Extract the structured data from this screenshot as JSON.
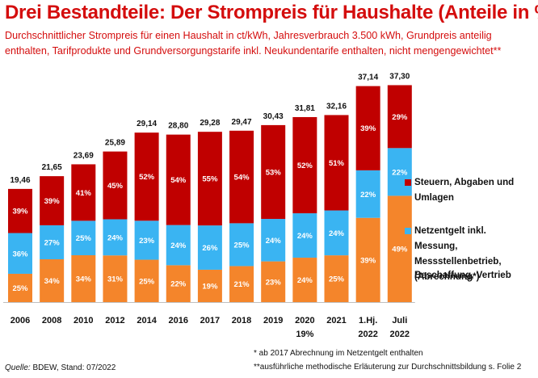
{
  "title": "Drei Bestandteile: Der Strompreis für Haushalte (Anteile in %)",
  "subtitle": "Durchschnittlicher Strompreis für einen Haushalt in ct/kWh, Jahresverbrauch 3.500 kWh, Grundpreis anteilig enthalten, Tarifprodukte und Grundversorgungstarife inkl. Neukundentarife enthalten, nicht mengengewichtet**",
  "colors": {
    "steuern": "#c00000",
    "netzentgelt": "#3ab4f2",
    "beschaffung": "#f4852b",
    "title": "#d40d0d"
  },
  "legend": {
    "steuern": "Steuern, Abgaben und Umlagen",
    "netzentgelt": "Netzentgelt inkl. Messung, Messstellenbetrieb, (Abrechnung*)",
    "beschaffung": "Beschaffung, Vertrieb"
  },
  "footnotes": {
    "note1": "* ab 2017 Abrechnung  im Netzentgelt enthalten",
    "note2": "**ausführliche methodische Erläuterung zur Durchschnittsbildung s. Folie 2"
  },
  "source": {
    "label": "Quelle:",
    "text": " BDEW, Stand: 07/2022"
  },
  "chart_data": {
    "type": "bar",
    "stacked": true,
    "unit": "ct/kWh",
    "categories": [
      [
        "2006"
      ],
      [
        "2008"
      ],
      [
        "2010"
      ],
      [
        "2012"
      ],
      [
        "2014"
      ],
      [
        "2016"
      ],
      [
        "2017"
      ],
      [
        "2018"
      ],
      [
        "2019"
      ],
      [
        "2020",
        "19%"
      ],
      [
        "2021"
      ],
      [
        "1.Hj.",
        "2022"
      ],
      [
        "Juli",
        "2022"
      ]
    ],
    "totals": [
      19.46,
      21.65,
      23.69,
      25.89,
      29.14,
      28.8,
      29.28,
      29.47,
      30.43,
      31.81,
      32.16,
      37.14,
      37.3
    ],
    "total_labels": [
      "19,46",
      "21,65",
      "23,69",
      "25,89",
      "29,14",
      "28,80",
      "29,28",
      "29,47",
      "30,43",
      "31,81",
      "32,16",
      "37,14",
      "37,30"
    ],
    "series": [
      {
        "name": "Beschaffung, Vertrieb",
        "key": "beschaffung",
        "percent": [
          25,
          34,
          34,
          31,
          25,
          22,
          19,
          21,
          23,
          24,
          25,
          39,
          49
        ]
      },
      {
        "name": "Netzentgelt inkl. Messung, Messstellenbetrieb, (Abrechnung*)",
        "key": "netzentgelt",
        "percent": [
          36,
          27,
          25,
          24,
          23,
          24,
          26,
          25,
          24,
          24,
          24,
          22,
          22
        ]
      },
      {
        "name": "Steuern, Abgaben und Umlagen",
        "key": "steuern",
        "percent": [
          39,
          39,
          41,
          45,
          52,
          54,
          55,
          54,
          53,
          52,
          51,
          39,
          29
        ]
      }
    ],
    "ylim": [
      0,
      40
    ],
    "legend_position": "right"
  }
}
